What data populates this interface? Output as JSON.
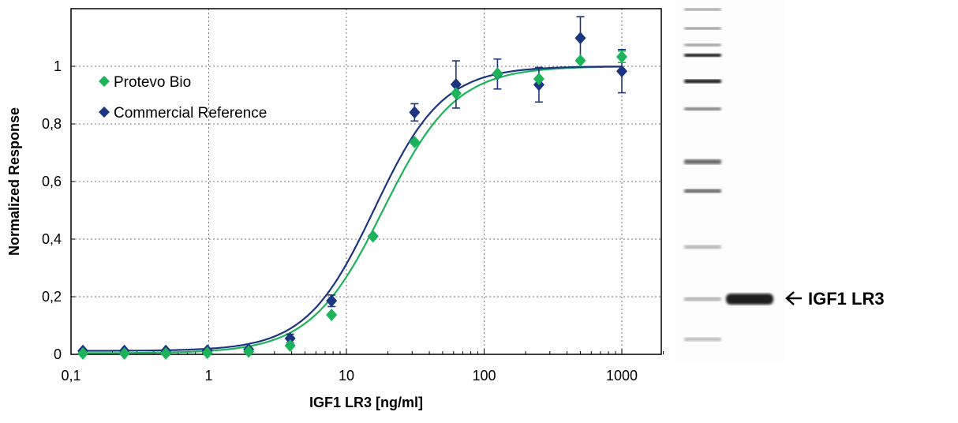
{
  "chart_data": {
    "type": "scatter",
    "xlabel": "IGF1 LR3 [ng/ml]",
    "ylabel": "Normalized Response",
    "x_scale": "log",
    "xlim": [
      0.1,
      2000
    ],
    "ylim": [
      0,
      1.2
    ],
    "x_ticks": [
      "0,1",
      "1",
      "10",
      "100",
      "1000"
    ],
    "y_ticks": [
      "0",
      "0,2",
      "0,4",
      "0,6",
      "0,8",
      "1"
    ],
    "grid": true,
    "legend_position": "top-left",
    "x": [
      0.122,
      0.244,
      0.488,
      0.977,
      1.95,
      3.9,
      7.8,
      15.6,
      31.25,
      62.5,
      125,
      250,
      500,
      1000
    ],
    "series": [
      {
        "name": "Protevo Bio",
        "color": "#1db35a",
        "values": [
          0.003,
          0.003,
          0.003,
          0.005,
          0.01,
          0.03,
          0.137,
          0.41,
          0.737,
          0.906,
          0.975,
          0.956,
          1.02,
          1.033
        ],
        "errors": [
          0,
          0,
          0,
          0,
          0,
          0,
          0,
          0,
          0,
          0,
          0,
          0,
          0,
          0.02
        ],
        "fit": {
          "model": "4PL",
          "bottom": 0.004,
          "top": 1.0,
          "ec50": 18.5,
          "hill": 1.65
        }
      },
      {
        "name": "Commercial Reference",
        "color": "#1b3580",
        "values": [
          0.012,
          0.012,
          0.012,
          0.013,
          0.017,
          0.055,
          0.186,
          0.41,
          0.84,
          0.937,
          0.973,
          0.936,
          1.098,
          0.983
        ],
        "errors": [
          0,
          0,
          0,
          0,
          0.004,
          0.015,
          0.02,
          0,
          0.03,
          0.082,
          0.052,
          0.06,
          0.074,
          0.075
        ],
        "fit": {
          "model": "4PL",
          "bottom": 0.012,
          "top": 1.0,
          "ec50": 16.0,
          "hill": 1.75
        }
      }
    ]
  },
  "gel": {
    "band_label": "IGF1 LR3",
    "arrow_icon": "arrow-left-icon"
  }
}
